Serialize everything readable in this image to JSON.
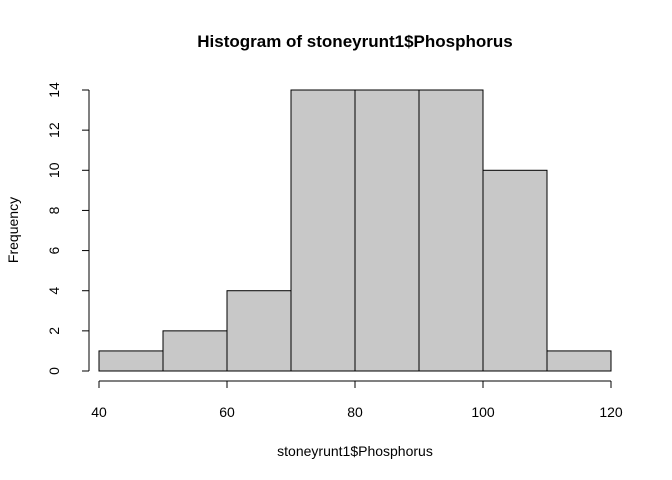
{
  "chart_data": {
    "type": "bar",
    "title": "Histogram of stoneyrunt1$Phosphorus",
    "xlabel": "stoneyrunt1$Phosphorus",
    "ylabel": "Frequency",
    "bins": [
      {
        "from": 40,
        "to": 50,
        "count": 1
      },
      {
        "from": 50,
        "to": 60,
        "count": 2
      },
      {
        "from": 60,
        "to": 70,
        "count": 4
      },
      {
        "from": 70,
        "to": 80,
        "count": 14
      },
      {
        "from": 80,
        "to": 90,
        "count": 14
      },
      {
        "from": 90,
        "to": 100,
        "count": 14
      },
      {
        "from": 100,
        "to": 110,
        "count": 10
      },
      {
        "from": 110,
        "to": 120,
        "count": 1
      }
    ],
    "xlim": [
      40,
      120
    ],
    "ylim": [
      0,
      14
    ],
    "xticks": [
      "40",
      "60",
      "80",
      "100",
      "120"
    ],
    "yticks": [
      "0",
      "2",
      "4",
      "6",
      "8",
      "10",
      "12",
      "14"
    ],
    "bar_color": "#c8c8c8",
    "grid": false,
    "legend": "none"
  }
}
